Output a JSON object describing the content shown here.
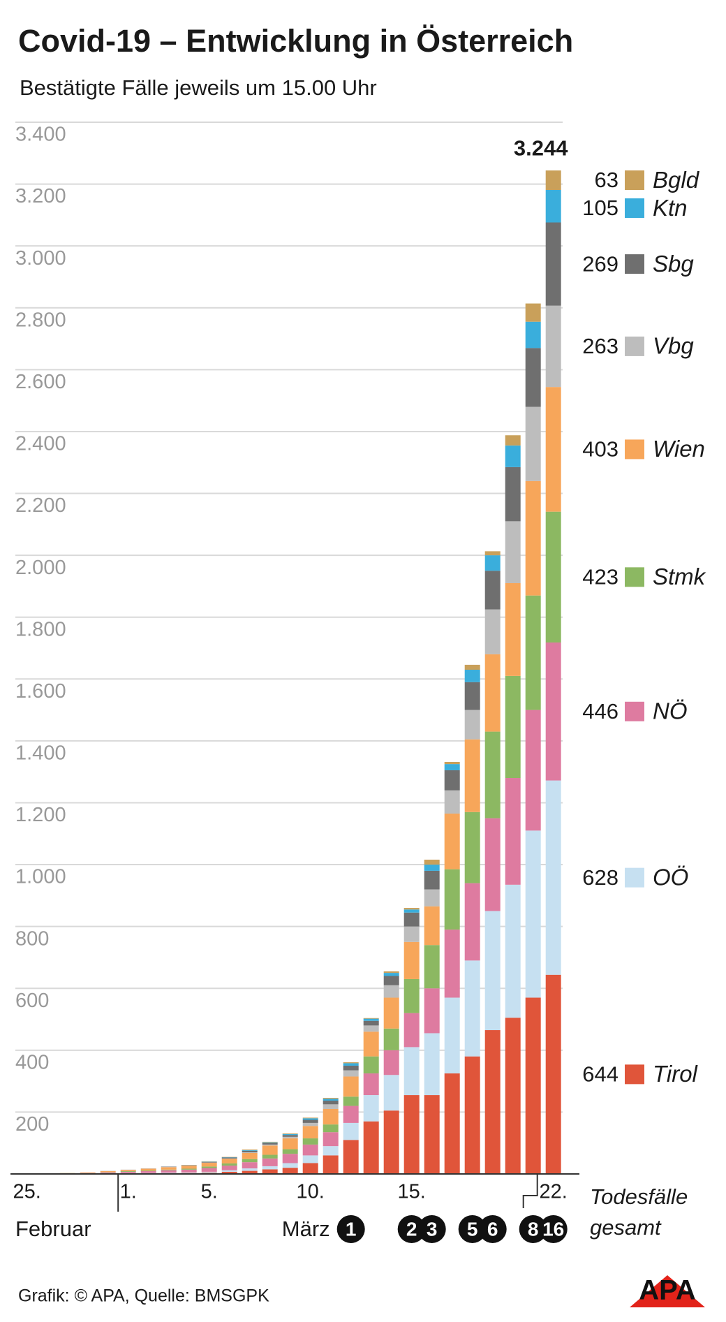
{
  "chart_data": {
    "type": "stacked_bar",
    "title": "Covid-19 – Entwicklung in Österreich",
    "subtitle": "Bestätigte Fälle jeweils um 15.00 Uhr",
    "categories": [
      "25.",
      null,
      null,
      null,
      null,
      "1.",
      null,
      null,
      null,
      "5.",
      null,
      null,
      null,
      null,
      "10.",
      null,
      null,
      null,
      null,
      "15.",
      null,
      null,
      null,
      null,
      null,
      null,
      "22."
    ],
    "month_labels": [
      "Februar",
      "März"
    ],
    "series": [
      {
        "name": "Tirol",
        "color": "#e0553a",
        "values": [
          2,
          2,
          2,
          2,
          2,
          2,
          2,
          2,
          3,
          4,
          7,
          10,
          15,
          20,
          35,
          60,
          110,
          170,
          205,
          255,
          255,
          325,
          380,
          465,
          505,
          570,
          644
        ]
      },
      {
        "name": "OÖ",
        "color": "#c6e0f1",
        "values": [
          0,
          0,
          0,
          0,
          0,
          1,
          1,
          2,
          2,
          3,
          5,
          8,
          10,
          15,
          25,
          30,
          55,
          85,
          115,
          155,
          200,
          245,
          310,
          385,
          430,
          540,
          628
        ]
      },
      {
        "name": "NÖ",
        "color": "#de7ba0",
        "values": [
          0,
          0,
          0,
          1,
          3,
          4,
          6,
          8,
          9,
          12,
          15,
          20,
          25,
          30,
          35,
          45,
          55,
          70,
          80,
          110,
          145,
          220,
          250,
          300,
          345,
          390,
          446
        ]
      },
      {
        "name": "Stmk",
        "color": "#8cb862",
        "values": [
          0,
          0,
          0,
          0,
          1,
          2,
          2,
          2,
          3,
          5,
          7,
          10,
          12,
          15,
          20,
          25,
          30,
          55,
          70,
          110,
          140,
          195,
          230,
          280,
          330,
          370,
          423
        ]
      },
      {
        "name": "Wien",
        "color": "#f7a65a",
        "values": [
          0,
          0,
          1,
          2,
          3,
          4,
          6,
          8,
          9,
          12,
          15,
          20,
          30,
          35,
          40,
          50,
          65,
          80,
          100,
          120,
          125,
          180,
          235,
          250,
          300,
          370,
          403
        ]
      },
      {
        "name": "Vbg",
        "color": "#bdbdbd",
        "values": [
          0,
          0,
          0,
          0,
          1,
          1,
          1,
          1,
          1,
          1,
          1,
          2,
          3,
          5,
          10,
          15,
          20,
          20,
          40,
          50,
          55,
          75,
          95,
          145,
          200,
          240,
          263
        ]
      },
      {
        "name": "Sbg",
        "color": "#6f6f6f",
        "values": [
          0,
          0,
          0,
          0,
          0,
          0,
          0,
          1,
          1,
          2,
          3,
          5,
          5,
          6,
          10,
          12,
          15,
          15,
          30,
          45,
          60,
          65,
          90,
          125,
          175,
          190,
          269
        ]
      },
      {
        "name": "Ktn",
        "color": "#3aaedc",
        "values": [
          0,
          0,
          0,
          0,
          0,
          0,
          0,
          0,
          0,
          1,
          1,
          2,
          2,
          3,
          5,
          6,
          8,
          7,
          10,
          10,
          20,
          20,
          40,
          50,
          70,
          85,
          105
        ]
      },
      {
        "name": "Bgld",
        "color": "#c9a05a",
        "values": [
          0,
          0,
          0,
          0,
          0,
          0,
          0,
          0,
          1,
          1,
          1,
          2,
          2,
          2,
          2,
          3,
          3,
          2,
          5,
          5,
          16,
          7,
          16,
          13,
          33,
          59,
          63
        ]
      }
    ],
    "total": {
      "value": 3244,
      "label": "3.244"
    },
    "deaths_label": [
      "Todesfälle",
      "gesamt"
    ],
    "deaths": [
      null,
      null,
      null,
      null,
      null,
      null,
      null,
      null,
      null,
      null,
      null,
      null,
      null,
      null,
      null,
      null,
      1,
      null,
      null,
      2,
      3,
      null,
      5,
      6,
      null,
      8,
      16
    ],
    "ylim": [
      0,
      3400
    ],
    "yticks": [
      200,
      400,
      600,
      800,
      {
        "value": 1000,
        "label": "1.000"
      },
      {
        "value": 1200,
        "label": "1.200"
      },
      {
        "value": 1400,
        "label": "1.400"
      },
      {
        "value": 1600,
        "label": "1.600"
      },
      {
        "value": 1800,
        "label": "1.800"
      },
      {
        "value": 2000,
        "label": "2.000"
      },
      {
        "value": 2200,
        "label": "2.200"
      },
      {
        "value": 2400,
        "label": "2.400"
      },
      {
        "value": 2600,
        "label": "2.600"
      },
      {
        "value": 2800,
        "label": "2.800"
      },
      {
        "value": 3000,
        "label": "3.000"
      },
      {
        "value": 3200,
        "label": "3.200"
      },
      {
        "value": 3400,
        "label": "3.400"
      }
    ],
    "grid": true,
    "source": "Grafik: © APA, Quelle: BMSGPK",
    "logo": "APA"
  }
}
